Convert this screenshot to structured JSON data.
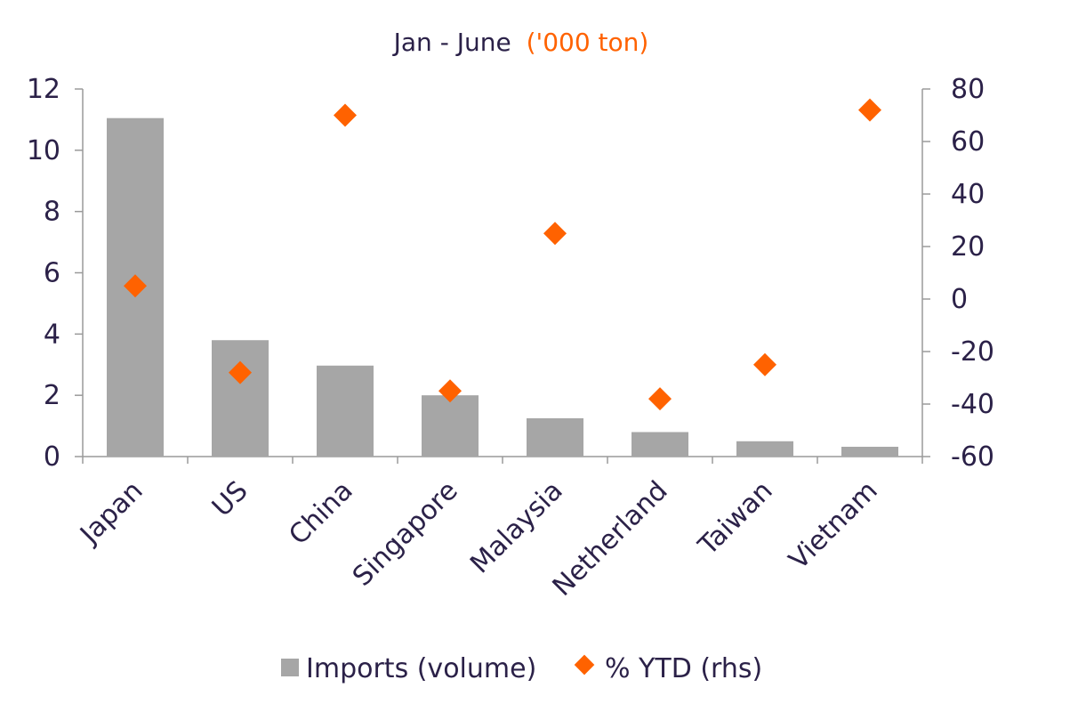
{
  "chart_data": {
    "type": "bar",
    "title": "Jan - June",
    "title_unit": "('000 ton)",
    "categories": [
      "Japan",
      "US",
      "China",
      "Singapore",
      "Malaysia",
      "Netherland",
      "Taiwan",
      "Vietnam"
    ],
    "series": [
      {
        "name": "Imports (volume)",
        "type": "bar",
        "axis": "left",
        "color": "#a6a6a6",
        "values": [
          11.05,
          3.8,
          2.97,
          2.0,
          1.25,
          0.8,
          0.5,
          0.32
        ]
      },
      {
        "name": "% YTD (rhs)",
        "type": "scatter",
        "marker": "diamond",
        "axis": "right",
        "color": "#ff6200",
        "values": [
          5,
          -28,
          70,
          -35,
          25,
          -38,
          -25,
          72
        ]
      }
    ],
    "y_left": {
      "min": 0,
      "max": 12,
      "ticks": [
        0,
        2,
        4,
        6,
        8,
        10,
        12
      ]
    },
    "y_right": {
      "min": -60,
      "max": 80,
      "ticks": [
        -60,
        -40,
        -20,
        0,
        20,
        40,
        60,
        80
      ]
    },
    "legend_position": "bottom",
    "grid": false,
    "accent_color": "#ff6200",
    "text_color": "#2b2148",
    "axis_color": "#9a9a9a"
  }
}
